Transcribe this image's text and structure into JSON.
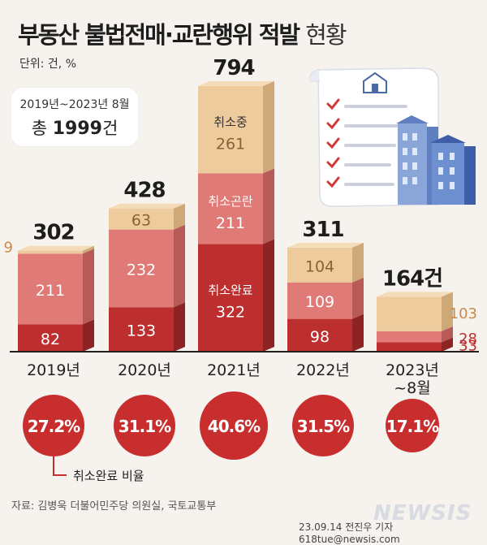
{
  "title": {
    "main": "부동산 불법전매·교란행위 적발",
    "sub": "현황"
  },
  "unit": "단위: 건, %",
  "period_box": {
    "range": "2019년~2023년 8월",
    "total_prefix": "총 ",
    "total_value": "1999",
    "total_suffix": "건"
  },
  "legend_label": "취소완료 비율",
  "source": "자료: 김병욱 더불어민주당 의원실, 국토교통부",
  "credit": "23.09.14 전진우 기자 618tue@newsis.com",
  "watermark": "NEWSIS",
  "colors": {
    "cancelled": "#bd2f2f",
    "difficult": "#e07a77",
    "in_progress": "#eecb9d",
    "circle": "#c82e2e",
    "baseline": "#222222"
  },
  "chart_data": {
    "type": "bar",
    "stacked": true,
    "categories": [
      "2019년",
      "2020년",
      "2021년",
      "2022년",
      "2023년 ~8월"
    ],
    "series": [
      {
        "name": "취소완료",
        "values": [
          82,
          133,
          322,
          98,
          28
        ]
      },
      {
        "name": "취소곤란",
        "values": [
          211,
          232,
          211,
          109,
          33
        ]
      },
      {
        "name": "취소중",
        "values": [
          9,
          63,
          261,
          104,
          103
        ]
      }
    ],
    "totals": [
      "302",
      "428",
      "794",
      "311",
      "164건"
    ],
    "cancel_completion_rate": [
      "27.2%",
      "31.1%",
      "40.6%",
      "31.5%",
      "17.1%"
    ],
    "stack_labels_2021": [
      "취소중",
      "취소곤란",
      "취소완료"
    ]
  }
}
